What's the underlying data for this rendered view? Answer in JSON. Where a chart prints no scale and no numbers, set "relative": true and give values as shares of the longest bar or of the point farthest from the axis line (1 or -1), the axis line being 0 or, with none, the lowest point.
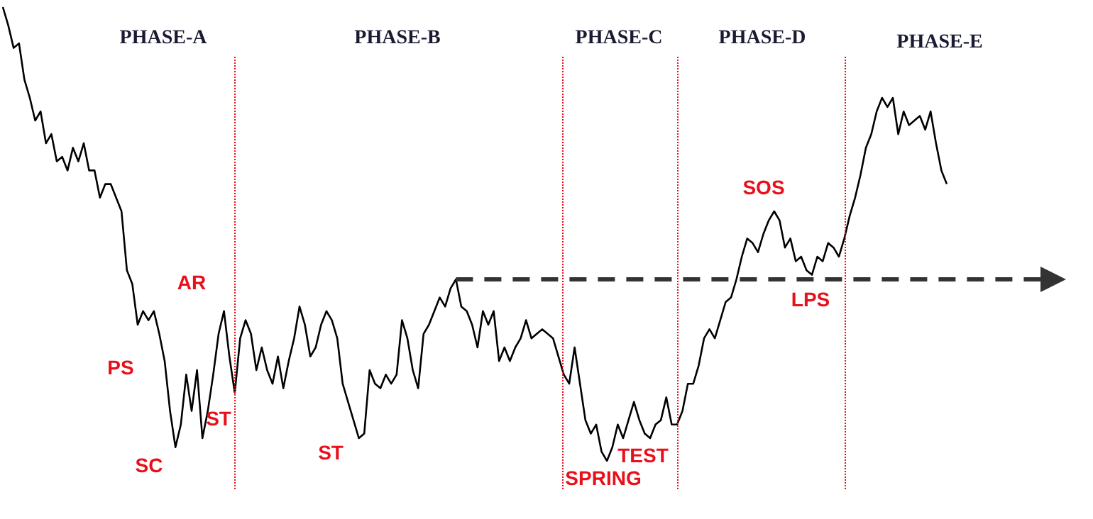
{
  "chart_data": {
    "type": "line",
    "relative": true,
    "categories": [
      null,
      null,
      null,
      null,
      null,
      null,
      null,
      null,
      null,
      null,
      null,
      null,
      null,
      null,
      null,
      null,
      null,
      null,
      null,
      null,
      null,
      null,
      null,
      null,
      null,
      null,
      null,
      null,
      null,
      null,
      null,
      null,
      null,
      null,
      null,
      null,
      null,
      null,
      null,
      null,
      null,
      null,
      null,
      null,
      null,
      null,
      null,
      null,
      null,
      null,
      null,
      null,
      null,
      null,
      null,
      null,
      null,
      null,
      null,
      null,
      null,
      null,
      null,
      null,
      null,
      null,
      null,
      null,
      null,
      null,
      null,
      null,
      null,
      null,
      null,
      null,
      null,
      null,
      null,
      null,
      null,
      null,
      null,
      null,
      null,
      null,
      null,
      null,
      null,
      null,
      null,
      null,
      null,
      null,
      null,
      null,
      null,
      null,
      null,
      null,
      null,
      null,
      null,
      null,
      null,
      null,
      null,
      null,
      null,
      null,
      null,
      null,
      null,
      null,
      null,
      null,
      null,
      null,
      null,
      null,
      null,
      null,
      null,
      null,
      null,
      null,
      null,
      null,
      null,
      null,
      null,
      null,
      null,
      null,
      null,
      null,
      null,
      null,
      null,
      null,
      null,
      null,
      null,
      null,
      null,
      null,
      null,
      null,
      null,
      null,
      null,
      null,
      null,
      null,
      null,
      null,
      null,
      null,
      null,
      null,
      null,
      null,
      null,
      null,
      null,
      null,
      null,
      null,
      null,
      null,
      null,
      null,
      null,
      null,
      null,
      null
    ],
    "series": [
      {
        "color": "#000000",
        "values": [
          1.0,
          0.96,
          0.91,
          0.92,
          0.84,
          0.8,
          0.75,
          0.77,
          0.7,
          0.72,
          0.66,
          0.67,
          0.64,
          0.69,
          0.66,
          0.7,
          0.64,
          0.64,
          0.58,
          0.61,
          0.61,
          0.58,
          0.55,
          0.42,
          0.39,
          0.3,
          0.33,
          0.31,
          0.33,
          0.28,
          0.22,
          0.11,
          0.03,
          0.08,
          0.19,
          0.11,
          0.2,
          0.05,
          0.11,
          0.19,
          0.28,
          0.33,
          0.23,
          0.15,
          0.27,
          0.31,
          0.28,
          0.2,
          0.25,
          0.2,
          0.17,
          0.23,
          0.16,
          0.22,
          0.27,
          0.34,
          0.3,
          0.23,
          0.25,
          0.3,
          0.33,
          0.31,
          0.27,
          0.17,
          0.13,
          0.09,
          0.05,
          0.06,
          0.2,
          0.17,
          0.16,
          0.19,
          0.17,
          0.19,
          0.31,
          0.27,
          0.2,
          0.16,
          0.28,
          0.3,
          0.33,
          0.36,
          0.34,
          0.38,
          0.4,
          0.34,
          0.33,
          0.3,
          0.25,
          0.33,
          0.3,
          0.33,
          0.22,
          0.25,
          0.22,
          0.25,
          0.27,
          0.31,
          0.27,
          0.28,
          0.29,
          0.28,
          0.27,
          0.23,
          0.19,
          0.17,
          0.25,
          0.17,
          0.09,
          0.06,
          0.08,
          0.02,
          0.0,
          0.03,
          0.08,
          0.05,
          0.09,
          0.13,
          0.09,
          0.06,
          0.05,
          0.08,
          0.09,
          0.14,
          0.08,
          0.08,
          0.11,
          0.17,
          0.17,
          0.21,
          0.27,
          0.29,
          0.27,
          0.31,
          0.35,
          0.36,
          0.4,
          0.45,
          0.49,
          0.48,
          0.46,
          0.5,
          0.53,
          0.55,
          0.53,
          0.47,
          0.49,
          0.44,
          0.45,
          0.42,
          0.41,
          0.45,
          0.44,
          0.48,
          0.47,
          0.45,
          0.49,
          0.54,
          0.58,
          0.63,
          0.69,
          0.72,
          0.77,
          0.8,
          0.78,
          0.8,
          0.72,
          0.77,
          0.74,
          0.75,
          0.76,
          0.73,
          0.77,
          0.7,
          0.64,
          0.61
        ]
      }
    ],
    "ref_lines": [
      {
        "axis": "y",
        "value": 0.4,
        "color": "#333333",
        "line_style": "dashed"
      }
    ],
    "annotations": [
      "PHASE-A",
      "PHASE-B",
      "PHASE-C",
      "PHASE-D",
      "PHASE-E",
      "PS",
      "SC",
      "AR",
      "ST",
      "ST",
      "SPRING",
      "TEST",
      "SOS",
      "LPS"
    ]
  }
}
